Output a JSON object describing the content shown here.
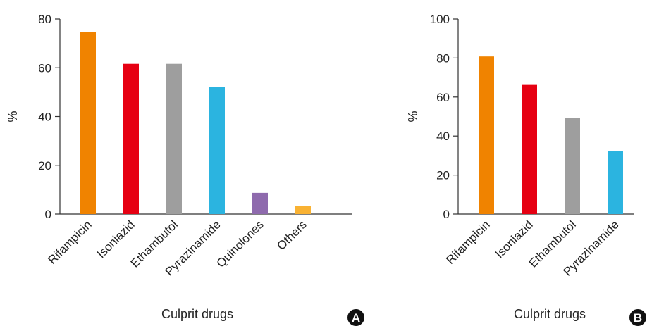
{
  "chart_data": [
    {
      "type": "bar",
      "panel_label": "A",
      "categories": [
        "Rifampicin",
        "Isoniazid",
        "Ethambutol",
        "Pyrazinamide",
        "Quinolones",
        "Others"
      ],
      "values": [
        74.8,
        61.6,
        61.6,
        52.1,
        8.7,
        3.3
      ],
      "colors": [
        "#f08300",
        "#e60012",
        "#9e9e9e",
        "#2bb4e0",
        "#8e6aad",
        "#f9b233"
      ],
      "xlabel": "Culprit drugs",
      "ylabel": "%",
      "ylim": [
        0,
        80
      ],
      "yticks": [
        0,
        20,
        40,
        60,
        80
      ],
      "grid": false,
      "legend": "none"
    },
    {
      "type": "bar",
      "panel_label": "B",
      "categories": [
        "Rifampicin",
        "Isoniazid",
        "Ethambutol",
        "Pyrazinamide"
      ],
      "values": [
        80.8,
        66.2,
        49.4,
        32.4
      ],
      "colors": [
        "#f08300",
        "#e60012",
        "#9e9e9e",
        "#2bb4e0"
      ],
      "xlabel": "Culprit drugs",
      "ylabel": "%",
      "ylim": [
        0,
        100
      ],
      "yticks": [
        0,
        20,
        40,
        60,
        80,
        100
      ],
      "grid": false,
      "legend": "none"
    }
  ]
}
